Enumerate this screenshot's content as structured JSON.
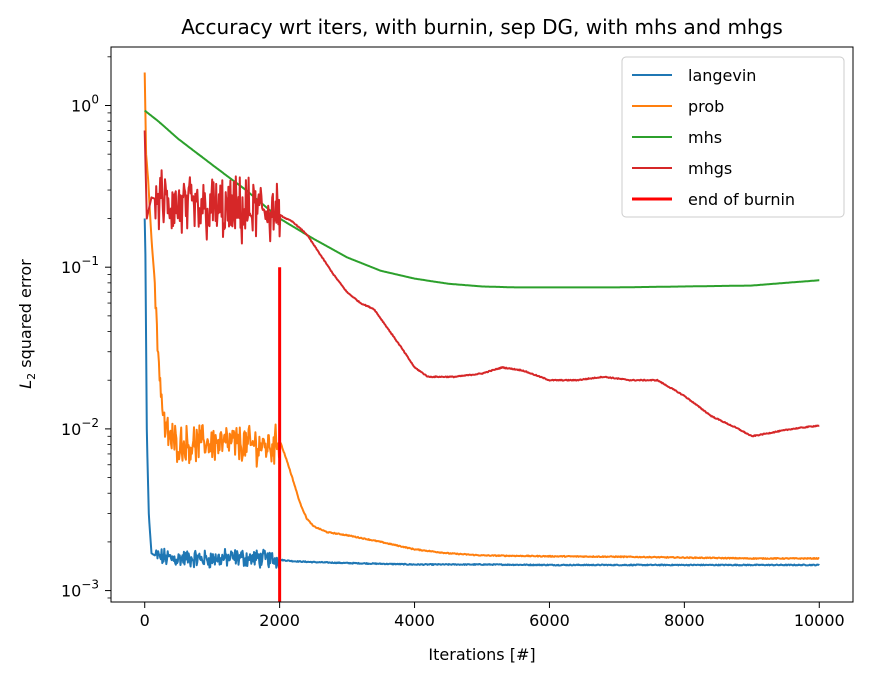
{
  "chart_data": {
    "type": "line",
    "title": "Accuracy wrt iters, with burnin, sep DG, with mhs and mhgs",
    "xlabel": "Iterations [#]",
    "ylabel_main": "L",
    "ylabel_sub": "2",
    "ylabel_rest": " squared error",
    "xlim": [
      -500,
      10500
    ],
    "ylim": [
      0.00085,
      2.3
    ],
    "yscale": "log",
    "grid": false,
    "legend_position": "top-right",
    "x_ticks": [
      0,
      2000,
      4000,
      6000,
      8000,
      10000
    ],
    "x_tick_labels": [
      "0",
      "2000",
      "4000",
      "6000",
      "8000",
      "10000"
    ],
    "y_ticks": [
      0.001,
      0.01,
      0.1,
      1
    ],
    "y_tick_bases": [
      "10",
      "10",
      "10",
      "10"
    ],
    "y_tick_exps": [
      "−3",
      "−2",
      "−1",
      "0"
    ],
    "series": [
      {
        "name": "langevin",
        "color": "#1f77b4",
        "style": "noisy",
        "x": [
          0,
          10,
          30,
          60,
          100,
          150,
          200,
          400,
          600,
          800,
          1000,
          1200,
          1400,
          1600,
          1800,
          2000,
          2200,
          2500,
          3000,
          4000,
          5000,
          6000,
          7000,
          8000,
          9000,
          10000
        ],
        "y": [
          0.2,
          0.12,
          0.01,
          0.003,
          0.0017,
          0.00165,
          0.00162,
          0.00158,
          0.00158,
          0.00157,
          0.00157,
          0.00158,
          0.0016,
          0.00158,
          0.00157,
          0.00155,
          0.00152,
          0.0015,
          0.00148,
          0.00145,
          0.00145,
          0.00144,
          0.00144,
          0.00144,
          0.00144,
          0.00144
        ],
        "noise_until": 2000,
        "noise_amp": 0.045
      },
      {
        "name": "prob",
        "color": "#ff7f0e",
        "style": "noisy",
        "x": [
          0,
          20,
          50,
          100,
          150,
          200,
          250,
          300,
          400,
          500,
          700,
          900,
          1100,
          1300,
          1500,
          1700,
          1900,
          2000,
          2100,
          2200,
          2300,
          2400,
          2500,
          2700,
          3000,
          3500,
          4000,
          4500,
          5000,
          6000,
          7000,
          8000,
          9000,
          10000
        ],
        "y": [
          1.6,
          0.5,
          0.35,
          0.15,
          0.08,
          0.03,
          0.015,
          0.01,
          0.0085,
          0.0082,
          0.008,
          0.0083,
          0.0081,
          0.0082,
          0.008,
          0.0079,
          0.0078,
          0.0085,
          0.0065,
          0.0048,
          0.0035,
          0.0028,
          0.0025,
          0.0023,
          0.0022,
          0.002,
          0.0018,
          0.0017,
          0.00165,
          0.00163,
          0.00162,
          0.0016,
          0.00158,
          0.00158
        ],
        "noise_until": 2000,
        "noise_amp": 0.09
      },
      {
        "name": "mhs",
        "color": "#2ca02c",
        "style": "smooth",
        "x": [
          0,
          200,
          500,
          1000,
          1500,
          2000,
          2500,
          3000,
          3500,
          4000,
          4500,
          5000,
          5500,
          6000,
          7000,
          8000,
          9000,
          9500,
          10000
        ],
        "y": [
          0.93,
          0.8,
          0.62,
          0.43,
          0.3,
          0.2,
          0.15,
          0.115,
          0.095,
          0.085,
          0.079,
          0.076,
          0.075,
          0.075,
          0.075,
          0.076,
          0.077,
          0.08,
          0.083
        ],
        "noise_until": 0,
        "noise_amp": 0
      },
      {
        "name": "mhgs",
        "color": "#d62728",
        "style": "noisy",
        "x": [
          0,
          30,
          100,
          200,
          400,
          600,
          800,
          1000,
          1200,
          1400,
          1600,
          1800,
          2000,
          2200,
          2400,
          2600,
          2800,
          3000,
          3200,
          3400,
          3600,
          3800,
          4000,
          4200,
          4600,
          5000,
          5300,
          5600,
          6000,
          6400,
          6800,
          7200,
          7600,
          8000,
          8400,
          8800,
          9000,
          9300,
          9600,
          10000
        ],
        "y": [
          0.7,
          0.2,
          0.27,
          0.26,
          0.24,
          0.23,
          0.22,
          0.23,
          0.22,
          0.22,
          0.22,
          0.23,
          0.21,
          0.19,
          0.16,
          0.12,
          0.09,
          0.07,
          0.06,
          0.055,
          0.042,
          0.032,
          0.024,
          0.021,
          0.021,
          0.022,
          0.024,
          0.023,
          0.02,
          0.02,
          0.021,
          0.02,
          0.02,
          0.016,
          0.012,
          0.01,
          0.009,
          0.0095,
          0.01,
          0.0105
        ],
        "noise_until": 2000,
        "noise_amp": 0.16
      },
      {
        "name": "end of burnin",
        "color": "#ff0000",
        "style": "vline",
        "x": [
          2000,
          2000
        ],
        "y": [
          0.00085,
          0.1
        ],
        "noise_until": 0,
        "noise_amp": 0
      }
    ]
  }
}
